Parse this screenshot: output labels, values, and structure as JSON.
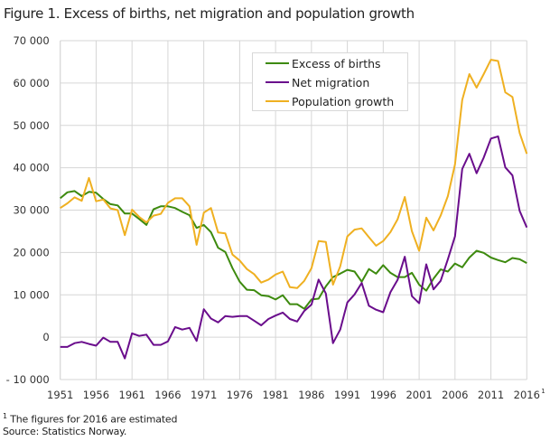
{
  "chart_data": {
    "type": "line",
    "title": "Figure 1. Excess of births, net migration and population growth",
    "xlabel": "",
    "ylabel": "",
    "x_start": 1951,
    "x_end": 2016,
    "ylim": [
      -10000,
      70000
    ],
    "y_ticks": [
      -10000,
      0,
      10000,
      20000,
      30000,
      40000,
      50000,
      60000,
      70000
    ],
    "y_tick_labels": [
      "- 10 000",
      "0",
      "10 000",
      "20 000",
      "30 000",
      "40 000",
      "50 000",
      "60 000",
      "70 000"
    ],
    "x_tick_labels": [
      "1951",
      "1956",
      "1961",
      "1966",
      "1971",
      "1976",
      "1981",
      "1986",
      "1991",
      "1996",
      "2001",
      "2006",
      "2011",
      "2016"
    ],
    "x_tick_footnote_mark": "1",
    "grid": true,
    "legend_position": "top-center",
    "series": [
      {
        "name": "Excess of births",
        "color": "#3d8a0e",
        "values": [
          32800,
          34200,
          34500,
          33300,
          34300,
          34100,
          32600,
          31400,
          31100,
          29200,
          29200,
          27900,
          26500,
          30200,
          30900,
          30900,
          30500,
          29600,
          28800,
          25800,
          26500,
          24800,
          21100,
          20100,
          16300,
          13100,
          11200,
          11100,
          9900,
          9700,
          8900,
          9900,
          7800,
          7800,
          6700,
          8900,
          9100,
          12000,
          14200,
          15000,
          15900,
          15500,
          13100,
          16100,
          15000,
          17000,
          15200,
          14200,
          14200,
          15200,
          12400,
          11000,
          13800,
          16000,
          15500,
          17400,
          16500,
          18800,
          20400,
          19900,
          18800,
          18200,
          17700,
          18700,
          18400,
          17500
        ]
      },
      {
        "name": "Net migration",
        "color": "#6a0d8c",
        "values": [
          -2300,
          -2300,
          -1400,
          -1100,
          -1600,
          -2000,
          -100,
          -1100,
          -1100,
          -5000,
          900,
          300,
          600,
          -1800,
          -1800,
          -1000,
          2400,
          1800,
          2200,
          -900,
          6600,
          4400,
          3500,
          5000,
          4800,
          5000,
          5000,
          3900,
          2800,
          4300,
          5100,
          5800,
          4300,
          3700,
          6200,
          7700,
          13600,
          10300,
          -1400,
          1800,
          8200,
          10100,
          12800,
          7400,
          6500,
          5900,
          10600,
          13500,
          19000,
          9700,
          8000,
          17200,
          11300,
          13300,
          18400,
          23800,
          39700,
          43300,
          38700,
          42400,
          46900,
          47400,
          40100,
          38200,
          29800,
          25900
        ]
      },
      {
        "name": "Population growth",
        "color": "#efb021",
        "values": [
          30500,
          31600,
          33000,
          32200,
          37600,
          32100,
          32500,
          30400,
          30000,
          24100,
          30100,
          28400,
          27100,
          28700,
          29100,
          31700,
          32800,
          32800,
          30900,
          21800,
          29400,
          30500,
          24700,
          24500,
          19500,
          18100,
          16100,
          14900,
          12900,
          13600,
          14800,
          15500,
          11800,
          11600,
          13300,
          16300,
          22700,
          22500,
          12400,
          16700,
          23800,
          25400,
          25700,
          23600,
          21600,
          22700,
          24800,
          27800,
          33100,
          25000,
          20400,
          28200,
          25200,
          28700,
          33300,
          40800,
          56000,
          62100,
          58900,
          62100,
          65500,
          65200,
          57800,
          56700,
          48200,
          43300
        ]
      }
    ]
  },
  "footnote": {
    "mark": "1",
    "text": "The figures for 2016 are estimated",
    "source": "Source: Statistics Norway."
  }
}
